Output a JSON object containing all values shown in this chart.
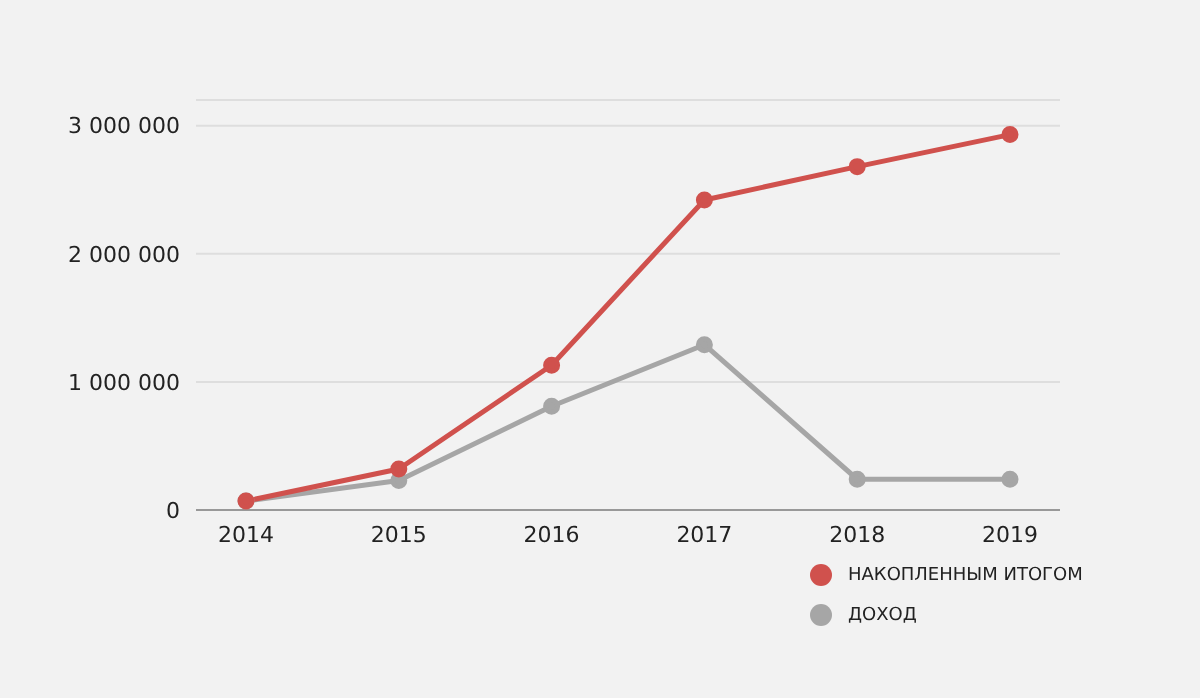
{
  "chart_data": {
    "type": "line",
    "categories": [
      "2014",
      "2015",
      "2016",
      "2017",
      "2018",
      "2019"
    ],
    "series": [
      {
        "name": "НАКОПЛЕННЫМ ИТОГОМ",
        "color": "#d0514d",
        "values": [
          70000,
          320000,
          1130000,
          2420000,
          2680000,
          2930000
        ]
      },
      {
        "name": "ДОХОД",
        "color": "#a6a6a6",
        "values": [
          70000,
          230000,
          810000,
          1290000,
          240000,
          240000
        ]
      }
    ],
    "ylim": [
      0,
      3200000
    ],
    "yticks": [
      {
        "value": 0,
        "label": "0"
      },
      {
        "value": 1000000,
        "label": "1 000 000"
      },
      {
        "value": 2000000,
        "label": "2 000 000"
      },
      {
        "value": 3000000,
        "label": "3 000 000"
      }
    ],
    "grid": "y",
    "legend": "bottom right",
    "marker": "circle"
  }
}
